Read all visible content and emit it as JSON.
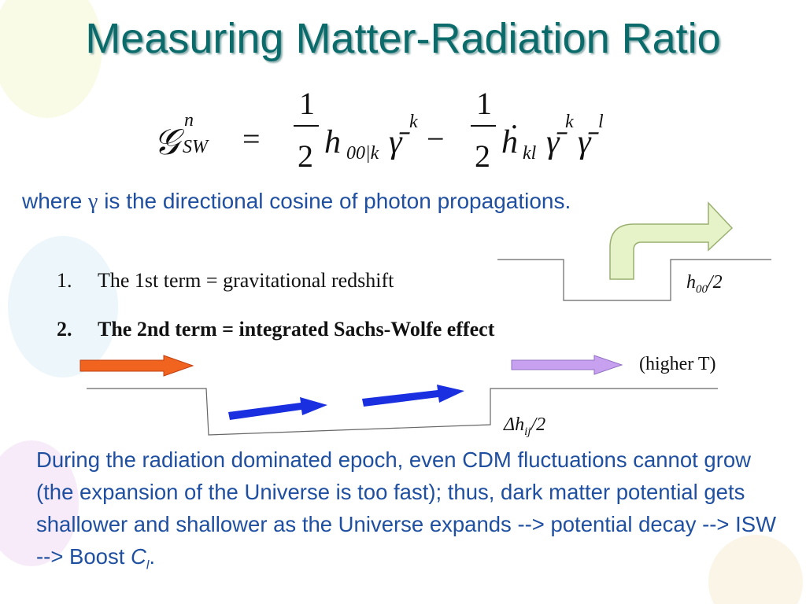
{
  "title": "Measuring Matter-Radiation Ratio",
  "equation": {
    "symbol": "𝒢",
    "sup": "n",
    "sub": "SW",
    "equals": "=",
    "term1": {
      "numerator": "1",
      "denominator": "2",
      "base": "h",
      "sub": "00|k",
      "gamma": "γ̄",
      "gamma_sup": "k"
    },
    "minus": "−",
    "term2": {
      "numerator": "1",
      "denominator": "2",
      "base": "ḣ",
      "sub": "kl",
      "gamma1": "γ̄",
      "gamma1_sup": "k",
      "gamma2": "γ̄",
      "gamma2_sup": "l"
    }
  },
  "where_line": {
    "before": "where ",
    "symbol": "γ",
    "after": " is the directional cosine of photon propagations."
  },
  "list": [
    {
      "number": "1.",
      "text": "The 1st term = gravitational redshift"
    },
    {
      "number": "2.",
      "text": "The 2nd term = integrated Sachs-Wolfe effect"
    }
  ],
  "label_h00": {
    "base": "h",
    "sub": "00",
    "rest": "/2"
  },
  "label_higher_t": "(higher T)",
  "label_dhij": {
    "base": "Δh",
    "sub": "ij",
    "rest": "/2"
  },
  "paragraph": {
    "text": "During the radiation dominated epoch, even CDM fluctuations cannot grow (the expansion of the Universe is too fast); thus, dark matter potential gets shallower and shallower as the Universe expands --> potential decay --> ISW --> Boost ",
    "symbol": "C",
    "sub": "l",
    "end": "."
  }
}
